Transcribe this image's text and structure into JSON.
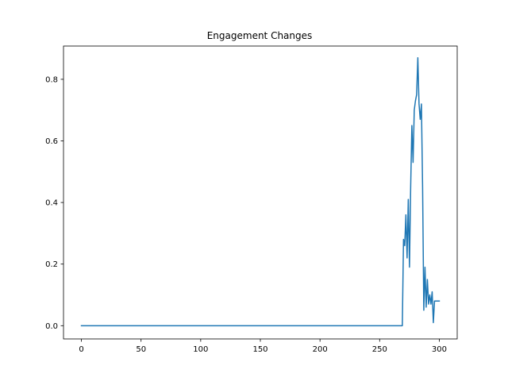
{
  "chart_data": {
    "type": "line",
    "title": "Engagement Changes",
    "xlabel": "",
    "ylabel": "",
    "xlim": [
      -15,
      315
    ],
    "ylim": [
      -0.043,
      0.908
    ],
    "xticks": [
      0,
      50,
      100,
      150,
      200,
      250,
      300
    ],
    "yticks": [
      0.0,
      0.2,
      0.4,
      0.6,
      0.8
    ],
    "ytick_labels": [
      "0.0",
      "0.2",
      "0.4",
      "0.6",
      "0.8"
    ],
    "grid": false,
    "legend": "none",
    "series": [
      {
        "color": "#1f77b4",
        "x": [
          0,
          269,
          270,
          271,
          272,
          273,
          274,
          275,
          276,
          277,
          278,
          279,
          280,
          281,
          282,
          283,
          284,
          285,
          286,
          287,
          288,
          289,
          290,
          291,
          292,
          293,
          294,
          295,
          296,
          297,
          298,
          299,
          300
        ],
        "y": [
          0.0,
          0.0,
          0.28,
          0.26,
          0.36,
          0.22,
          0.41,
          0.19,
          0.45,
          0.65,
          0.53,
          0.7,
          0.73,
          0.75,
          0.87,
          0.72,
          0.67,
          0.72,
          0.45,
          0.05,
          0.19,
          0.06,
          0.15,
          0.07,
          0.1,
          0.07,
          0.11,
          0.01,
          0.08,
          0.08,
          0.08,
          0.08,
          0.08
        ]
      }
    ]
  }
}
